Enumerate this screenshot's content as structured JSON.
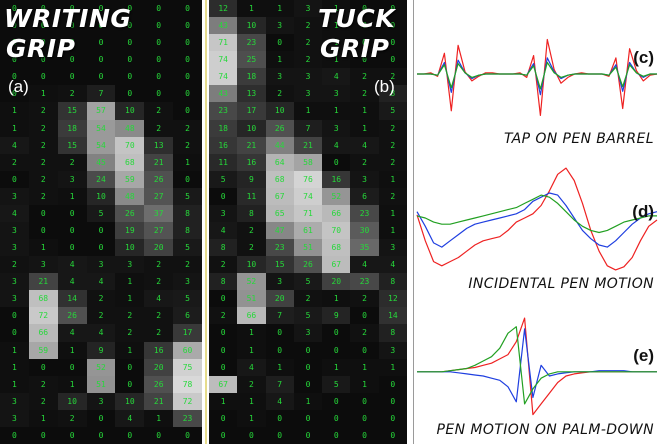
{
  "panel_a": {
    "title_line1": "WRITING",
    "title_line2": "GRIP",
    "letter": "(a)",
    "grid": [
      [
        "0",
        "0",
        "0",
        "0",
        "0",
        "0"
      ],
      [
        "0",
        "0",
        "0",
        "0",
        "0",
        "0"
      ],
      [
        "0",
        "0",
        "0",
        "0",
        "0",
        "0"
      ],
      [
        "0",
        "0",
        "0",
        "0",
        "0",
        "0"
      ],
      [
        "0",
        "0",
        "0",
        "0",
        "0",
        "0"
      ],
      [
        "0",
        "1",
        "2",
        "7",
        "0",
        "0"
      ],
      [
        "1",
        "2",
        "15",
        "57",
        "10",
        "2"
      ],
      [
        "1",
        "2",
        "18",
        "54",
        "48",
        "2"
      ],
      [
        "4",
        "2",
        "15",
        "54",
        "70",
        "13"
      ],
      [
        "2",
        "2",
        "2",
        "45",
        "68",
        "21"
      ],
      [
        "0",
        "2",
        "3",
        "24",
        "59",
        "26"
      ],
      [
        "3",
        "2",
        "1",
        "10",
        "48",
        "27"
      ],
      [
        "4",
        "0",
        "0",
        "5",
        "26",
        "37"
      ],
      [
        "3",
        "0",
        "0",
        "0",
        "19",
        "27"
      ],
      [
        "3",
        "1",
        "0",
        "0",
        "10",
        "20"
      ],
      [
        "2",
        "3",
        "4",
        "3",
        "3",
        "2"
      ],
      [
        "3",
        "21",
        "4",
        "4",
        "1",
        "2"
      ],
      [
        "3",
        "68",
        "14",
        "2",
        "1",
        "4"
      ],
      [
        "0",
        "72",
        "26",
        "2",
        "2",
        "2"
      ],
      [
        "0",
        "66",
        "4",
        "4",
        "2",
        "2"
      ],
      [
        "1",
        "59",
        "1",
        "9",
        "1",
        "16"
      ],
      [
        "1",
        "0",
        "0",
        "52",
        "0",
        "20"
      ],
      [
        "1",
        "2",
        "1",
        "51",
        "0",
        "26"
      ],
      [
        "3",
        "2",
        "10",
        "3",
        "10",
        "21"
      ],
      [
        "3",
        "1",
        "2",
        "0",
        "4",
        "1"
      ],
      [
        "0",
        "0",
        "0",
        "0",
        "0",
        "0"
      ]
    ],
    "right_col": [
      "0",
      "0",
      "0",
      "0",
      "0",
      "0",
      "0",
      "2",
      "2",
      "1",
      "0",
      "5",
      "8",
      "8",
      "5",
      "2",
      "3",
      "5",
      "6",
      "17",
      "60",
      "75",
      "78",
      "72",
      "23",
      "0"
    ]
  },
  "panel_b": {
    "title_line1": "TUCK",
    "title_line2": "GRIP",
    "letter": "(b)",
    "grid": [
      [
        "12",
        "1",
        "1",
        "3",
        "1",
        "0",
        "0"
      ],
      [
        "43",
        "10",
        "3",
        "2",
        "1",
        "0",
        "0"
      ],
      [
        "71",
        "23",
        "0",
        "2",
        "1",
        "0",
        "0"
      ],
      [
        "74",
        "25",
        "1",
        "2",
        "1",
        "0",
        "0"
      ],
      [
        "74",
        "18",
        "3",
        "3",
        "4",
        "2",
        "2"
      ],
      [
        "43",
        "13",
        "2",
        "3",
        "3",
        "2",
        "8"
      ],
      [
        "23",
        "17",
        "10",
        "1",
        "1",
        "1",
        "5"
      ],
      [
        "18",
        "10",
        "26",
        "7",
        "3",
        "1",
        "2"
      ],
      [
        "16",
        "21",
        "44",
        "21",
        "4",
        "4",
        "2"
      ],
      [
        "11",
        "16",
        "64",
        "58",
        "0",
        "2",
        "2"
      ],
      [
        "5",
        "9",
        "68",
        "76",
        "16",
        "3",
        "1"
      ],
      [
        "0",
        "11",
        "67",
        "74",
        "52",
        "6",
        "2"
      ],
      [
        "3",
        "8",
        "65",
        "71",
        "66",
        "23",
        "1"
      ],
      [
        "4",
        "2",
        "47",
        "61",
        "70",
        "30",
        "1"
      ],
      [
        "8",
        "2",
        "23",
        "51",
        "68",
        "35",
        "3"
      ],
      [
        "2",
        "10",
        "15",
        "26",
        "67",
        "4",
        "4"
      ],
      [
        "8",
        "52",
        "3",
        "5",
        "20",
        "23",
        "8"
      ],
      [
        "0",
        "51",
        "20",
        "2",
        "1",
        "2",
        "12"
      ],
      [
        "2",
        "66",
        "7",
        "5",
        "9",
        "0",
        "14"
      ],
      [
        "0",
        "1",
        "0",
        "3",
        "0",
        "2",
        "8"
      ],
      [
        "0",
        "1",
        "0",
        "0",
        "0",
        "0",
        "3"
      ],
      [
        "0",
        "4",
        "1",
        "0",
        "1",
        "1",
        "1"
      ],
      [
        "67",
        "2",
        "7",
        "0",
        "5",
        "1",
        "0"
      ],
      [
        "1",
        "1",
        "4",
        "1",
        "0",
        "0",
        "0"
      ],
      [
        "0",
        "1",
        "0",
        "0",
        "0",
        "0",
        "0"
      ],
      [
        "0",
        "0",
        "0",
        "0",
        "0",
        "0",
        "0"
      ]
    ]
  },
  "plots": {
    "c": {
      "letter": "(c)",
      "caption": "TAP ON PEN BARREL"
    },
    "d": {
      "letter": "(d)",
      "caption": "INCIDENTAL PEN MOTION"
    },
    "e": {
      "letter": "(e)",
      "caption": "PEN MOTION ON PALM-DOWN"
    }
  },
  "colors": {
    "heatmap_text": "#26d93a",
    "series_red": "#ee2222",
    "series_blue": "#1f3fe0",
    "series_green": "#22a022"
  },
  "chart_data": [
    {
      "type": "line",
      "title": "TAP ON PEN BARREL",
      "series": [
        {
          "values": [
            0,
            0,
            1,
            -2,
            18,
            -32,
            25,
            2,
            -6,
            -2,
            1,
            1,
            0,
            0,
            0,
            1,
            -3,
            16,
            -36,
            30,
            4,
            -8,
            -3,
            0,
            1,
            0,
            0,
            0,
            -2,
            14,
            -30,
            22,
            3,
            -6,
            -1,
            0
          ]
        },
        {
          "values": [
            0,
            0,
            0,
            -1,
            10,
            -16,
            12,
            1,
            -4,
            -1,
            0,
            0,
            0,
            0,
            0,
            0,
            -1,
            9,
            -18,
            14,
            2,
            -4,
            -1,
            0,
            0,
            0,
            0,
            0,
            -1,
            8,
            -15,
            10,
            1,
            -3,
            0,
            0
          ]
        },
        {
          "values": [
            0,
            0,
            0,
            -1,
            8,
            -12,
            9,
            1,
            -3,
            -1,
            0,
            0,
            0,
            0,
            0,
            0,
            -1,
            7,
            -13,
            10,
            1,
            -3,
            -1,
            0,
            0,
            0,
            0,
            0,
            -1,
            6,
            -11,
            8,
            1,
            -2,
            0,
            0
          ]
        }
      ]
    },
    {
      "type": "line",
      "title": "INCIDENTAL PEN MOTION",
      "series": [
        {
          "values": [
            5,
            -20,
            -40,
            -44,
            -40,
            -36,
            -30,
            -24,
            -20,
            -18,
            -16,
            -10,
            -2,
            2,
            6,
            14,
            28,
            44,
            50,
            38,
            16,
            -10,
            -30,
            -44,
            -48,
            -45,
            -36,
            -20,
            -6,
            0
          ]
        },
        {
          "values": [
            8,
            -6,
            -22,
            -26,
            -20,
            -14,
            -8,
            -4,
            -2,
            0,
            2,
            4,
            6,
            10,
            18,
            22,
            26,
            24,
            14,
            2,
            -10,
            -18,
            -24,
            -26,
            -20,
            -12,
            -4,
            2,
            6,
            8
          ]
        },
        {
          "values": [
            4,
            2,
            -2,
            -4,
            -4,
            -2,
            0,
            2,
            4,
            6,
            8,
            10,
            12,
            16,
            20,
            24,
            22,
            16,
            8,
            0,
            -6,
            -10,
            -12,
            -10,
            -6,
            -2,
            0,
            2,
            4,
            4
          ]
        }
      ]
    },
    {
      "type": "line",
      "title": "PEN MOTION ON PALM-DOWN",
      "series": [
        {
          "values": [
            0,
            0,
            0,
            0,
            1,
            2,
            3,
            4,
            6,
            8,
            12,
            16,
            28,
            50,
            -40,
            -30,
            -20,
            -10,
            -4,
            -2,
            -1,
            0,
            0,
            0,
            0,
            0,
            0,
            0,
            0,
            0
          ]
        },
        {
          "values": [
            0,
            0,
            0,
            0,
            0,
            -1,
            -2,
            -3,
            -4,
            -6,
            -8,
            -14,
            -28,
            40,
            -24,
            6,
            -4,
            -2,
            -1,
            0,
            0,
            0,
            1,
            1,
            1,
            1,
            0,
            0,
            0,
            0
          ]
        },
        {
          "values": [
            0,
            0,
            0,
            0,
            1,
            2,
            3,
            6,
            10,
            14,
            22,
            36,
            42,
            -30,
            -16,
            -6,
            -2,
            0,
            0,
            0,
            0,
            0,
            0,
            0,
            0,
            0,
            0,
            0,
            0,
            0
          ]
        }
      ]
    }
  ]
}
